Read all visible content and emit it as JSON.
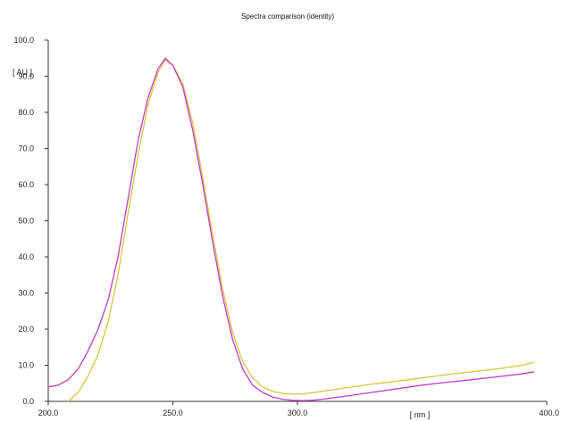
{
  "chart_data": {
    "type": "line",
    "title": "Spectra comparison (identity)",
    "xlabel": "[ nm ]",
    "ylabel": "[ AU ]",
    "xlim": [
      200.0,
      400.0
    ],
    "ylim": [
      0.0,
      100.0
    ],
    "x_ticks": [
      "200.0",
      "250.0",
      "300.0",
      "400.0"
    ],
    "y_ticks": [
      "0.0",
      "10.0",
      "20.0",
      "30.0",
      "40.0",
      "50.0",
      "60.0",
      "70.0",
      "80.0",
      "90.0",
      "100.0"
    ],
    "grid": false,
    "series": [
      {
        "color": "#d9c63a",
        "x": [
          208,
          212,
          216,
          220,
          224,
          228,
          232,
          236,
          240,
          244,
          247,
          250,
          254,
          258,
          262,
          266,
          270,
          274,
          278,
          282,
          286,
          290,
          294,
          298,
          302,
          306,
          310,
          320,
          330,
          340,
          350,
          360,
          370,
          380,
          390,
          395
        ],
        "y": [
          0,
          2.5,
          7,
          13,
          22,
          35,
          52,
          68,
          82,
          91,
          94.5,
          93,
          88,
          77,
          62,
          46,
          31,
          19,
          11,
          6.5,
          4,
          2.8,
          2.2,
          2.0,
          2.1,
          2.4,
          2.8,
          3.8,
          4.8,
          5.6,
          6.5,
          7.4,
          8.2,
          9.0,
          10.0,
          10.8
        ]
      },
      {
        "color": "#c23cc9",
        "x": [
          200,
          204,
          208,
          212,
          216,
          220,
          224,
          228,
          232,
          236,
          240,
          244,
          247,
          250,
          254,
          258,
          262,
          266,
          270,
          274,
          278,
          282,
          286,
          290,
          294,
          298,
          302,
          306,
          310,
          320,
          330,
          340,
          350,
          360,
          370,
          380,
          390,
          395
        ],
        "y": [
          4,
          4.5,
          6,
          9,
          14,
          20,
          28,
          40,
          56,
          72,
          84,
          92,
          95,
          93,
          87,
          75,
          60,
          44,
          29,
          17,
          9,
          4.5,
          2.5,
          1.2,
          0.6,
          0.3,
          0.2,
          0.3,
          0.6,
          1.5,
          2.5,
          3.5,
          4.5,
          5.3,
          6.0,
          6.8,
          7.6,
          8.2
        ]
      }
    ]
  }
}
